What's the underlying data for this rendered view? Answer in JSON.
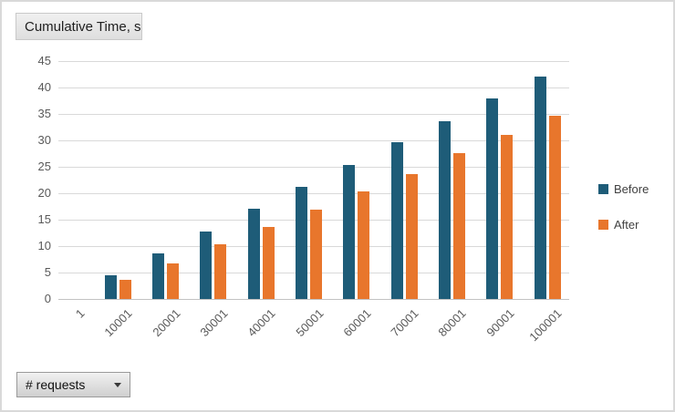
{
  "window": {
    "background": "#FFFFFF",
    "border_color": "#D9D9D9"
  },
  "buttons": {
    "values_field": "Cumulative Time, s",
    "axis_field": "# requests"
  },
  "chart_data": {
    "type": "bar",
    "title": "Cumulative Time, s",
    "xlabel": "# requests",
    "ylabel": "Cumulative Time, s",
    "categories": [
      "1",
      "10001",
      "20001",
      "30001",
      "40001",
      "50001",
      "60001",
      "70001",
      "80001",
      "90001",
      "100001"
    ],
    "series": [
      {
        "name": "Before",
        "color": "#1E5C78",
        "values": [
          0,
          4.5,
          8.6,
          12.8,
          17.0,
          21.2,
          25.3,
          29.6,
          33.7,
          37.9,
          42.0
        ]
      },
      {
        "name": "After",
        "color": "#E8762C",
        "values": [
          0,
          3.6,
          6.8,
          10.3,
          13.6,
          16.9,
          20.3,
          23.7,
          27.6,
          31.0,
          34.6
        ]
      }
    ],
    "ylim": [
      0,
      45
    ],
    "yticks": [
      0,
      5,
      10,
      15,
      20,
      25,
      30,
      35,
      40,
      45
    ],
    "grid": true,
    "gridline_color": "#D9D9D9",
    "tick_label_color": "#595959",
    "legend_position": "right-middle",
    "x_tick_rotation": 45
  }
}
